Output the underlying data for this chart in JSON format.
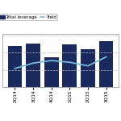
{
  "categories": [
    "2Q14",
    "3Q14",
    "4Q14",
    "1Q15",
    "2Q15",
    "3Q15"
  ],
  "bar_values": [
    4.8,
    5.1,
    3.5,
    5.0,
    4.4,
    5.4
  ],
  "yield_values": [
    5.6,
    6.2,
    6.5,
    6.3,
    5.9,
    6.9
  ],
  "bar_color": "#1a2a5e",
  "yield_color": "#7ab8d9",
  "background_color": "#ffffff",
  "grid_color": "#bbbbbb",
  "legend_bar_label": "Total leverage",
  "legend_yield_label": "Yield",
  "bar_width": 0.78,
  "ylim_left": [
    0,
    6.2
  ],
  "ylim_right": [
    3.5,
    9.5
  ]
}
